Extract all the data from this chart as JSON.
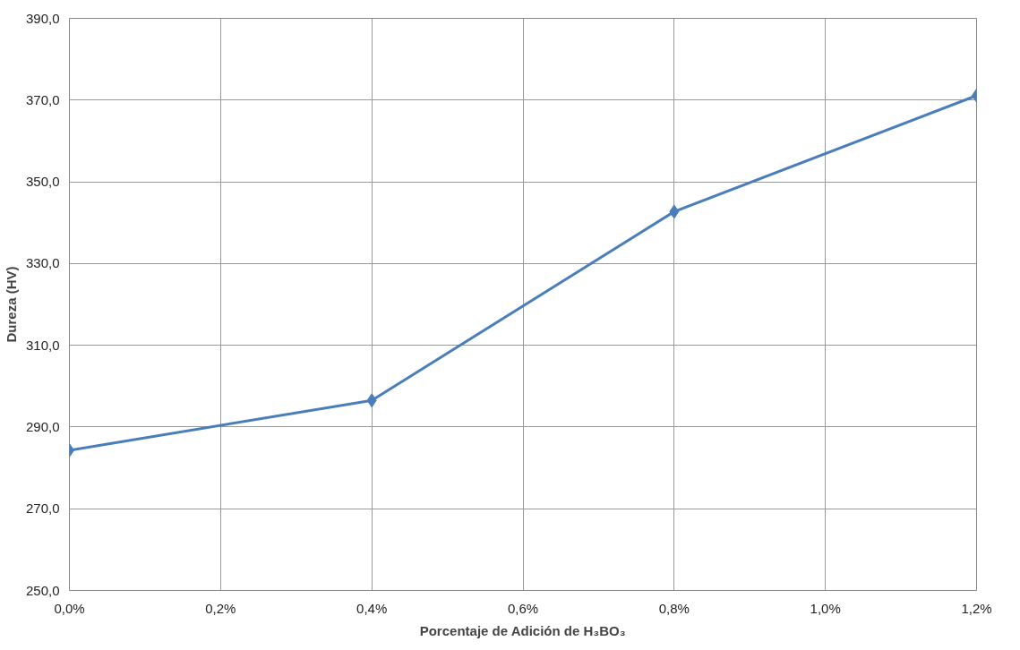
{
  "chart_data": {
    "type": "line",
    "xlabel": "Porcentaje de Adición de H₃BO₃",
    "ylabel": "Dureza (HV)",
    "x": [
      0,
      0.4,
      0.8,
      1.2
    ],
    "series": [
      {
        "color": "#4a7ebb",
        "values": [
          284.3,
          296.5,
          342.7,
          371.1
        ]
      }
    ],
    "xlim": [
      0,
      1.2
    ],
    "ylim": [
      250,
      390
    ],
    "xticks": [
      {
        "value": 0,
        "label": "0,0%"
      },
      {
        "value": 0.2,
        "label": "0,2%"
      },
      {
        "value": 0.4,
        "label": "0,4%"
      },
      {
        "value": 0.6,
        "label": "0,6%"
      },
      {
        "value": 0.8,
        "label": "0,8%"
      },
      {
        "value": 1.0,
        "label": "1,0%"
      },
      {
        "value": 1.2,
        "label": "1,2%"
      }
    ],
    "yticks": [
      {
        "value": 250,
        "label": "250,0"
      },
      {
        "value": 270,
        "label": "270,0"
      },
      {
        "value": 290,
        "label": "290,0"
      },
      {
        "value": 310,
        "label": "310,0"
      },
      {
        "value": 330,
        "label": "330,0"
      },
      {
        "value": 350,
        "label": "350,0"
      },
      {
        "value": 370,
        "label": "370,0"
      },
      {
        "value": 390,
        "label": "390,0"
      }
    ],
    "grid": true,
    "marker": "diamond"
  }
}
